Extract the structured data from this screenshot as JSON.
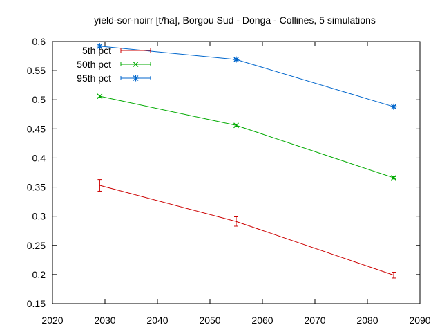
{
  "chart_data": {
    "type": "line",
    "title": "yield-sor-noirr [t/ha], Borgou Sud - Donga - Collines, 5 simulations",
    "xlabel": "",
    "ylabel": "",
    "xlim": [
      2020,
      2090
    ],
    "ylim": [
      0.15,
      0.6
    ],
    "xticks": [
      2020,
      2030,
      2040,
      2050,
      2060,
      2070,
      2080,
      2090
    ],
    "yticks": [
      0.15,
      0.2,
      0.25,
      0.3,
      0.35,
      0.4,
      0.45,
      0.5,
      0.55,
      0.6
    ],
    "ytick_labels": [
      "0.15",
      "0.2",
      "0.25",
      "0.3",
      "0.35",
      "0.4",
      "0.45",
      "0.5",
      "0.55",
      "0.6"
    ],
    "grid": false,
    "legend_position": "top-left",
    "x": [
      2029,
      2055,
      2085
    ],
    "series": [
      {
        "name": "5th pct",
        "color": "#cc0000",
        "marker": "errorbar",
        "values": [
          0.353,
          0.291,
          0.199
        ],
        "err": [
          0.01,
          0.008,
          0.005
        ]
      },
      {
        "name": "50th pct",
        "color": "#00aa00",
        "marker": "x",
        "values": [
          0.506,
          0.456,
          0.366
        ],
        "err": [
          0.002,
          0.002,
          0.002
        ]
      },
      {
        "name": "95th pct",
        "color": "#0066cc",
        "marker": "star",
        "values": [
          0.592,
          0.569,
          0.488
        ],
        "err": [
          0.002,
          0.002,
          0.002
        ]
      }
    ]
  }
}
